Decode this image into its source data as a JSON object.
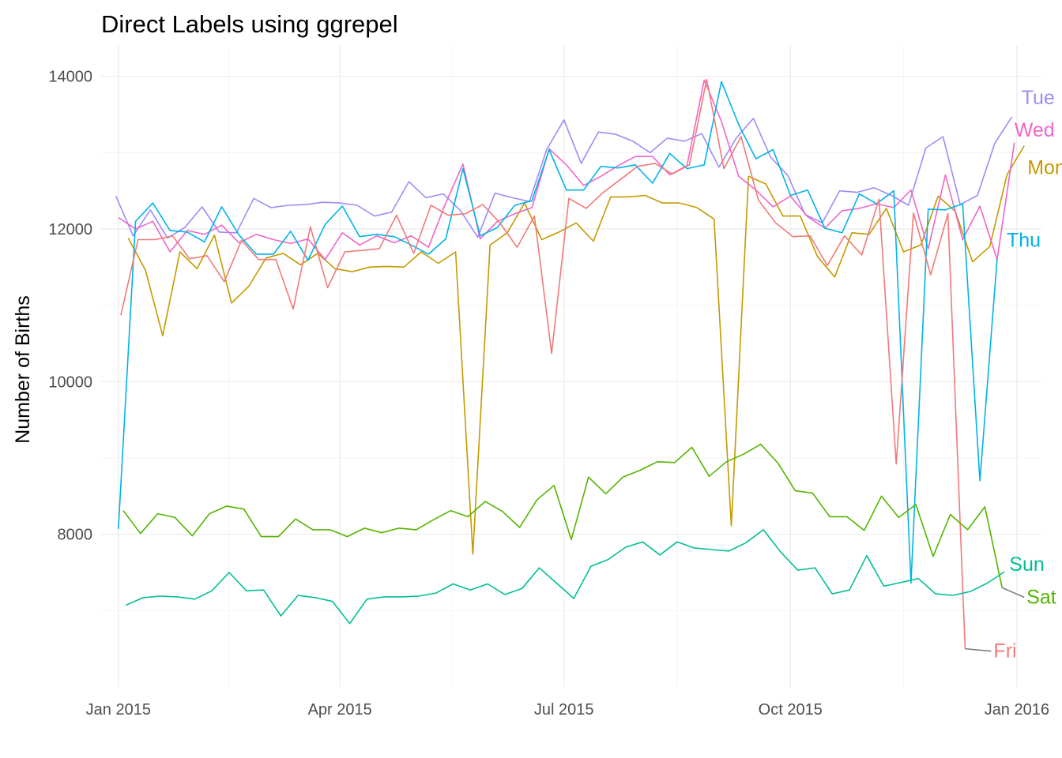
{
  "chart_data": {
    "type": "line",
    "title": "Direct Labels using ggrepel",
    "xlabel": "",
    "ylabel": "Number of Births",
    "xlim": [
      "2014-12-25",
      "2016-01-11"
    ],
    "ylim": [
      6000,
      14400
    ],
    "x_ticks": [
      "2015-01-01",
      "2015-04-01",
      "2015-07-01",
      "2015-10-01",
      "2016-01-01"
    ],
    "x_tick_labels": [
      "Jan 2015",
      "Apr 2015",
      "Jul 2015",
      "Oct 2015",
      "Jan 2016"
    ],
    "y_ticks": [
      8000,
      10000,
      12000,
      14000
    ],
    "y_tick_labels": [
      "8000",
      "10000",
      "12000",
      "14000"
    ],
    "grid": true,
    "legend": "direct labels at line ends",
    "series": [
      {
        "name": "Mon",
        "color": "#C49A00",
        "start": "2015-01-05",
        "values": [
          11880,
          11460,
          10600,
          11700,
          11480,
          11920,
          11030,
          11250,
          11620,
          11680,
          11530,
          11680,
          11480,
          11440,
          11500,
          11510,
          11500,
          11700,
          11550,
          11700,
          7740,
          11790,
          11950,
          12340,
          11860,
          11960,
          12080,
          11840,
          12420,
          12420,
          12440,
          12340,
          12340,
          12280,
          12130,
          8110,
          12690,
          12590,
          12170,
          12170,
          11640,
          11370,
          11950,
          11930,
          12270,
          11700,
          11790,
          12430,
          12230,
          11570,
          11770,
          12710,
          13090
        ]
      },
      {
        "name": "Tue",
        "color": "#9F8CF5",
        "start": "2014-12-31",
        "values": [
          12430,
          11910,
          12250,
          11880,
          12020,
          12290,
          11960,
          11950,
          12400,
          12280,
          12310,
          12320,
          12350,
          12340,
          12310,
          12170,
          12220,
          12620,
          12410,
          12460,
          12240,
          11890,
          12470,
          12410,
          12360,
          13040,
          13430,
          12860,
          13270,
          13240,
          13150,
          13000,
          13190,
          13150,
          13250,
          12810,
          13190,
          13450,
          12940,
          12700,
          12190,
          12080,
          12500,
          12480,
          12540,
          12440,
          12310,
          13060,
          13210,
          12320,
          12440,
          13120,
          13470
        ]
      },
      {
        "name": "Wed",
        "color": "#F066C8",
        "start": "2015-01-01",
        "values": [
          12150,
          12000,
          12100,
          11700,
          11980,
          11930,
          12050,
          11820,
          11930,
          11860,
          11810,
          11870,
          11600,
          11950,
          11790,
          11910,
          11820,
          11910,
          11760,
          12340,
          12850,
          11870,
          12100,
          12200,
          12280,
          13050,
          12840,
          12570,
          12690,
          12830,
          12950,
          12950,
          12710,
          12830,
          13950,
          13410,
          12690,
          12510,
          12290,
          12430,
          12160,
          12010,
          12240,
          12270,
          12330,
          12280,
          12510,
          11740,
          12710,
          11860,
          12300,
          11600,
          13130
        ]
      },
      {
        "name": "Thu",
        "color": "#00B3E8",
        "start": "2015-01-01",
        "values": [
          8070,
          12100,
          12340,
          11980,
          11960,
          11830,
          12290,
          11920,
          11670,
          11670,
          11970,
          11590,
          12060,
          12300,
          11900,
          11930,
          11900,
          11790,
          11670,
          11870,
          12790,
          11910,
          12020,
          12310,
          12370,
          13040,
          12510,
          12510,
          12820,
          12800,
          12840,
          12600,
          12990,
          12790,
          12840,
          13930,
          13370,
          12920,
          13040,
          12440,
          12510,
          12010,
          11950,
          12460,
          12330,
          12500,
          7360,
          12260,
          12250,
          12330,
          8700,
          11610
        ]
      },
      {
        "name": "Fri",
        "color": "#F07A7A",
        "start": "2015-01-02",
        "values": [
          10870,
          11860,
          11860,
          11910,
          11610,
          11650,
          11310,
          11850,
          11600,
          11600,
          10950,
          12030,
          11230,
          11700,
          11720,
          11740,
          12180,
          11680,
          12310,
          12180,
          12200,
          12320,
          12080,
          11760,
          12170,
          10370,
          12400,
          12270,
          12480,
          12650,
          12820,
          12860,
          12720,
          12840,
          13960,
          12790,
          13210,
          12380,
          12080,
          11900,
          11910,
          11520,
          11910,
          11660,
          12390,
          8920,
          12210,
          11400,
          12200,
          6500
        ]
      },
      {
        "name": "Sat",
        "color": "#53B400",
        "start": "2015-01-03",
        "values": [
          8310,
          8010,
          8270,
          8220,
          7980,
          8270,
          8370,
          8330,
          7970,
          7970,
          8200,
          8060,
          8060,
          7970,
          8080,
          8020,
          8080,
          8060,
          8190,
          8310,
          8230,
          8430,
          8300,
          8090,
          8450,
          8640,
          7930,
          8750,
          8530,
          8750,
          8840,
          8950,
          8940,
          9140,
          8760,
          8950,
          9050,
          9180,
          8930,
          8570,
          8540,
          8230,
          8230,
          8050,
          8500,
          8220,
          8390,
          7710,
          8260,
          8060,
          8360,
          7300
        ]
      },
      {
        "name": "Sun",
        "color": "#00BF95",
        "start": "2015-01-04",
        "values": [
          7070,
          7170,
          7190,
          7180,
          7150,
          7260,
          7500,
          7260,
          7270,
          6930,
          7200,
          7170,
          7120,
          6830,
          7150,
          7180,
          7180,
          7190,
          7230,
          7350,
          7270,
          7350,
          7210,
          7290,
          7560,
          7360,
          7160,
          7580,
          7670,
          7830,
          7900,
          7730,
          7900,
          7820,
          7800,
          7780,
          7890,
          8060,
          7770,
          7530,
          7560,
          7220,
          7270,
          7720,
          7320,
          7370,
          7420,
          7220,
          7200,
          7250,
          7360,
          7510
        ]
      }
    ]
  }
}
